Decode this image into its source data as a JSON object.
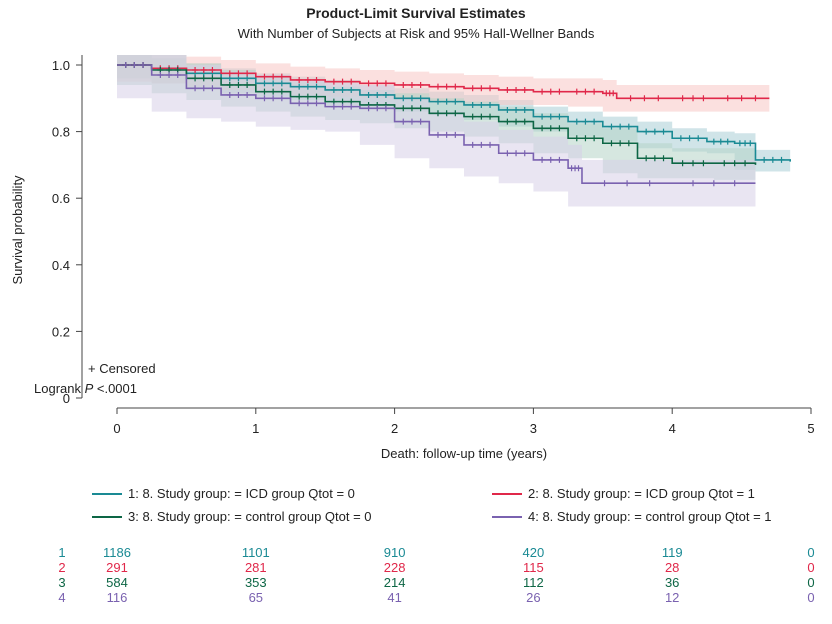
{
  "chart_data": {
    "type": "line",
    "title": "Product-Limit Survival Estimates",
    "subtitle": "With Number of Subjects at Risk and 95% Hall-Wellner Bands",
    "xlabel": "Death: follow-up time (years)",
    "ylabel": "Survival probability",
    "xlim": [
      0,
      5
    ],
    "ylim": [
      0,
      1
    ],
    "x_ticks": [
      "0",
      "1",
      "2",
      "3",
      "4",
      "5"
    ],
    "y_ticks": [
      "0",
      "0.2",
      "0.4",
      "0.6",
      "0.8",
      "1.0"
    ],
    "censor_note": "+ Censored",
    "logrank_label": "Logrank ",
    "logrank_p": "P",
    "logrank_value": " <.0001",
    "series": [
      {
        "id": "1",
        "name": "1: 8. Study group: = ICD group Qtot = 0",
        "color": "#1a8a94",
        "band_color": "#a9cdd6",
        "x": [
          0,
          0.25,
          0.5,
          0.75,
          1.0,
          1.25,
          1.5,
          1.75,
          2.0,
          2.25,
          2.5,
          2.75,
          3.0,
          3.25,
          3.5,
          3.75,
          4.0,
          4.25,
          4.45,
          4.6,
          4.85
        ],
        "y": [
          1.0,
          0.99,
          0.975,
          0.96,
          0.945,
          0.935,
          0.925,
          0.91,
          0.9,
          0.89,
          0.88,
          0.865,
          0.845,
          0.83,
          0.815,
          0.8,
          0.78,
          0.77,
          0.765,
          0.715,
          0.71
        ],
        "band": 0.03
      },
      {
        "id": "2",
        "name": "2: 8. Study group: = ICD group Qtot = 1",
        "color": "#e0284a",
        "band_color": "#f8c7c4",
        "x": [
          0,
          0.25,
          0.5,
          0.75,
          1.0,
          1.25,
          1.5,
          1.75,
          2.0,
          2.25,
          2.5,
          2.75,
          3.0,
          3.25,
          3.5,
          3.6,
          4.0,
          4.3,
          4.7
        ],
        "y": [
          1.0,
          0.99,
          0.985,
          0.975,
          0.965,
          0.955,
          0.95,
          0.945,
          0.94,
          0.935,
          0.93,
          0.925,
          0.92,
          0.92,
          0.915,
          0.9,
          0.9,
          0.9,
          0.9
        ],
        "band": 0.04
      },
      {
        "id": "3",
        "name": "3: 8. Study group: = control group Qtot = 0",
        "color": "#0d6645",
        "band_color": "#b4d3c6",
        "x": [
          0,
          0.25,
          0.5,
          0.75,
          1.0,
          1.25,
          1.5,
          1.75,
          2.0,
          2.25,
          2.5,
          2.75,
          3.0,
          3.25,
          3.5,
          3.75,
          4.0,
          4.3,
          4.6
        ],
        "y": [
          1.0,
          0.985,
          0.96,
          0.94,
          0.92,
          0.905,
          0.89,
          0.88,
          0.87,
          0.855,
          0.845,
          0.83,
          0.81,
          0.78,
          0.765,
          0.72,
          0.705,
          0.705,
          0.7
        ],
        "band": 0.045
      },
      {
        "id": "4",
        "name": "4: 8. Study group: = control group Qtot = 1",
        "color": "#7a62b0",
        "band_color": "#d7cfe8",
        "x": [
          0,
          0.25,
          0.5,
          0.75,
          1.0,
          1.25,
          1.5,
          1.75,
          2.0,
          2.25,
          2.5,
          2.75,
          3.0,
          3.25,
          3.35,
          4.0,
          4.6
        ],
        "y": [
          1.0,
          0.97,
          0.93,
          0.91,
          0.9,
          0.885,
          0.875,
          0.87,
          0.83,
          0.79,
          0.76,
          0.735,
          0.715,
          0.69,
          0.645,
          0.645,
          0.645
        ],
        "band": 0.07
      }
    ],
    "at_risk": {
      "1": [
        "1186",
        "1101",
        "910",
        "420",
        "119",
        "0"
      ],
      "2": [
        "291",
        "281",
        "228",
        "115",
        "28",
        "0"
      ],
      "3": [
        "584",
        "353",
        "214",
        "112",
        "36",
        "0"
      ],
      "4": [
        "116",
        "65",
        "41",
        "26",
        "12",
        "0"
      ]
    }
  }
}
